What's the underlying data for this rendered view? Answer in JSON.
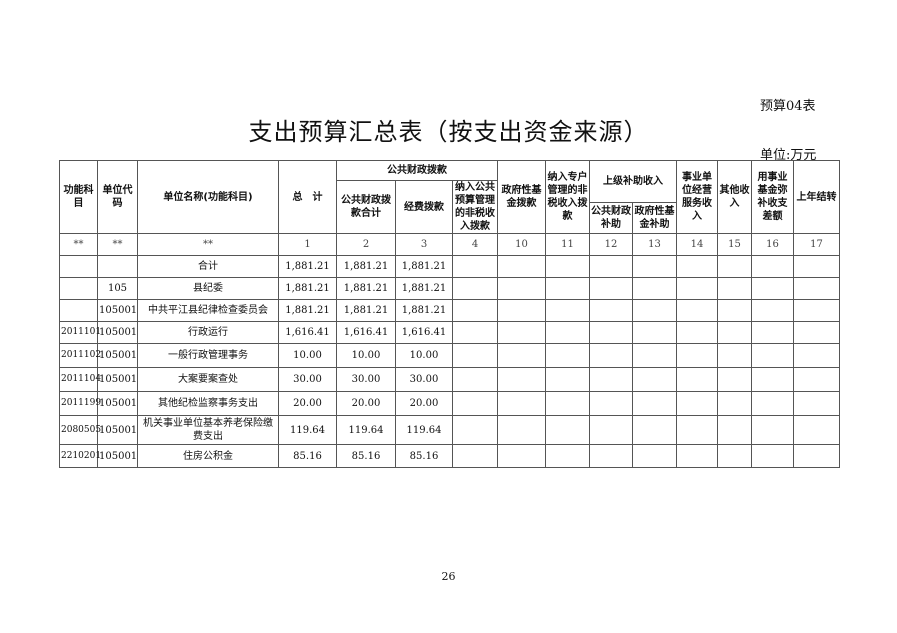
{
  "form_no": "预算04表",
  "title": "支出预算汇总表（按支出资金来源）",
  "unit": "单位:万元",
  "headers": {
    "func_subject": "功能科目",
    "unit_code": "单位代码",
    "unit_name": "单位名称(功能科目)",
    "total": "总　计",
    "public_finance": "公共财政拨款",
    "public_finance_total": "公共财政拨款合计",
    "expense_alloc": "经费拨款",
    "nontax_budget": "纳入公共预算管理的非税收入拨款",
    "gov_fund": "政府性基金拨款",
    "special_nontax": "纳入专户管理的非税收入拨款",
    "superior_subsidy": "上级补助收入",
    "sub_public": "公共财政补助",
    "sub_gov_fund": "政府性基金补助",
    "business_income": "事业单位经营服务收入",
    "other_income": "其他收入",
    "fund_make_up": "用事业基金弥补收支差额",
    "carry_over": "上年结转"
  },
  "column_numbers": [
    "**",
    "**",
    "**",
    "1",
    "2",
    "3",
    "4",
    "10",
    "11",
    "12",
    "13",
    "14",
    "15",
    "16",
    "17"
  ],
  "rows": [
    [
      "",
      "",
      "合计",
      "1,881.21",
      "1,881.21",
      "1,881.21"
    ],
    [
      "",
      "105",
      "县纪委",
      "1,881.21",
      "1,881.21",
      "1,881.21"
    ],
    [
      "",
      "105001",
      "中共平江县纪律检查委员会",
      "1,881.21",
      "1,881.21",
      "1,881.21"
    ],
    [
      "2011101",
      "105001",
      "行政运行",
      "1,616.41",
      "1,616.41",
      "1,616.41"
    ],
    [
      "2011102",
      "105001",
      "一般行政管理事务",
      "10.00",
      "10.00",
      "10.00"
    ],
    [
      "2011104",
      "105001",
      "大案要案查处",
      "30.00",
      "30.00",
      "30.00"
    ],
    [
      "2011199",
      "105001",
      "其他纪检监察事务支出",
      "20.00",
      "20.00",
      "20.00"
    ],
    [
      "2080505",
      "105001",
      "机关事业单位基本养老保险缴费支出",
      "119.64",
      "119.64",
      "119.64"
    ],
    [
      "2210201",
      "105001",
      "住房公积金",
      "85.16",
      "85.16",
      "85.16"
    ]
  ],
  "page_number": "26"
}
